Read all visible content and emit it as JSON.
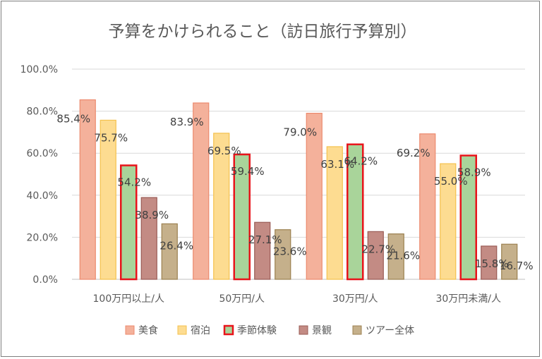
{
  "chart_data": {
    "type": "bar",
    "title": "予算をかけられること（訪日旅行予算別）",
    "xlabel": "",
    "ylabel": "",
    "ylim": [
      0,
      100
    ],
    "yticks": [
      0,
      20,
      40,
      60,
      80,
      100
    ],
    "ytick_labels": [
      "0.0%",
      "20.0%",
      "40.0%",
      "60.0%",
      "80.0%",
      "100.0%"
    ],
    "grid": true,
    "legend_position": "bottom",
    "categories": [
      "100万円以上/人",
      "50万円/人",
      "30万円/人",
      "30万円未満/人"
    ],
    "series": [
      {
        "name": "美食",
        "values": [
          85.4,
          83.9,
          79.0,
          69.2
        ],
        "labels": [
          "85.4%",
          "83.9%",
          "79.0%",
          "69.2%"
        ],
        "fill": "#f4b19b",
        "stroke": "#ec8a6e"
      },
      {
        "name": "宿泊",
        "values": [
          75.7,
          69.5,
          63.1,
          55.0
        ],
        "labels": [
          "75.7%",
          "69.5%",
          "63.1%",
          "55.0%"
        ],
        "fill": "#fddc91",
        "stroke": "#f4c14e"
      },
      {
        "name": "季節体験",
        "values": [
          54.2,
          59.4,
          64.2,
          58.9
        ],
        "labels": [
          "54.2%",
          "59.4%",
          "64.2%",
          "58.9%"
        ],
        "fill": "#a9d49a",
        "stroke": "#e8141b"
      },
      {
        "name": "景観",
        "values": [
          38.9,
          27.1,
          22.7,
          15.8
        ],
        "labels": [
          "38.9%",
          "27.1%",
          "22.7%",
          "15.8%"
        ],
        "fill": "#c38b84",
        "stroke": "#9a5b55"
      },
      {
        "name": "ツアー全体",
        "values": [
          26.4,
          23.6,
          21.6,
          16.7
        ],
        "labels": [
          "26.4%",
          "23.6%",
          "21.6%",
          "16.7%"
        ],
        "fill": "#c5b08b",
        "stroke": "#9c8150"
      }
    ]
  }
}
